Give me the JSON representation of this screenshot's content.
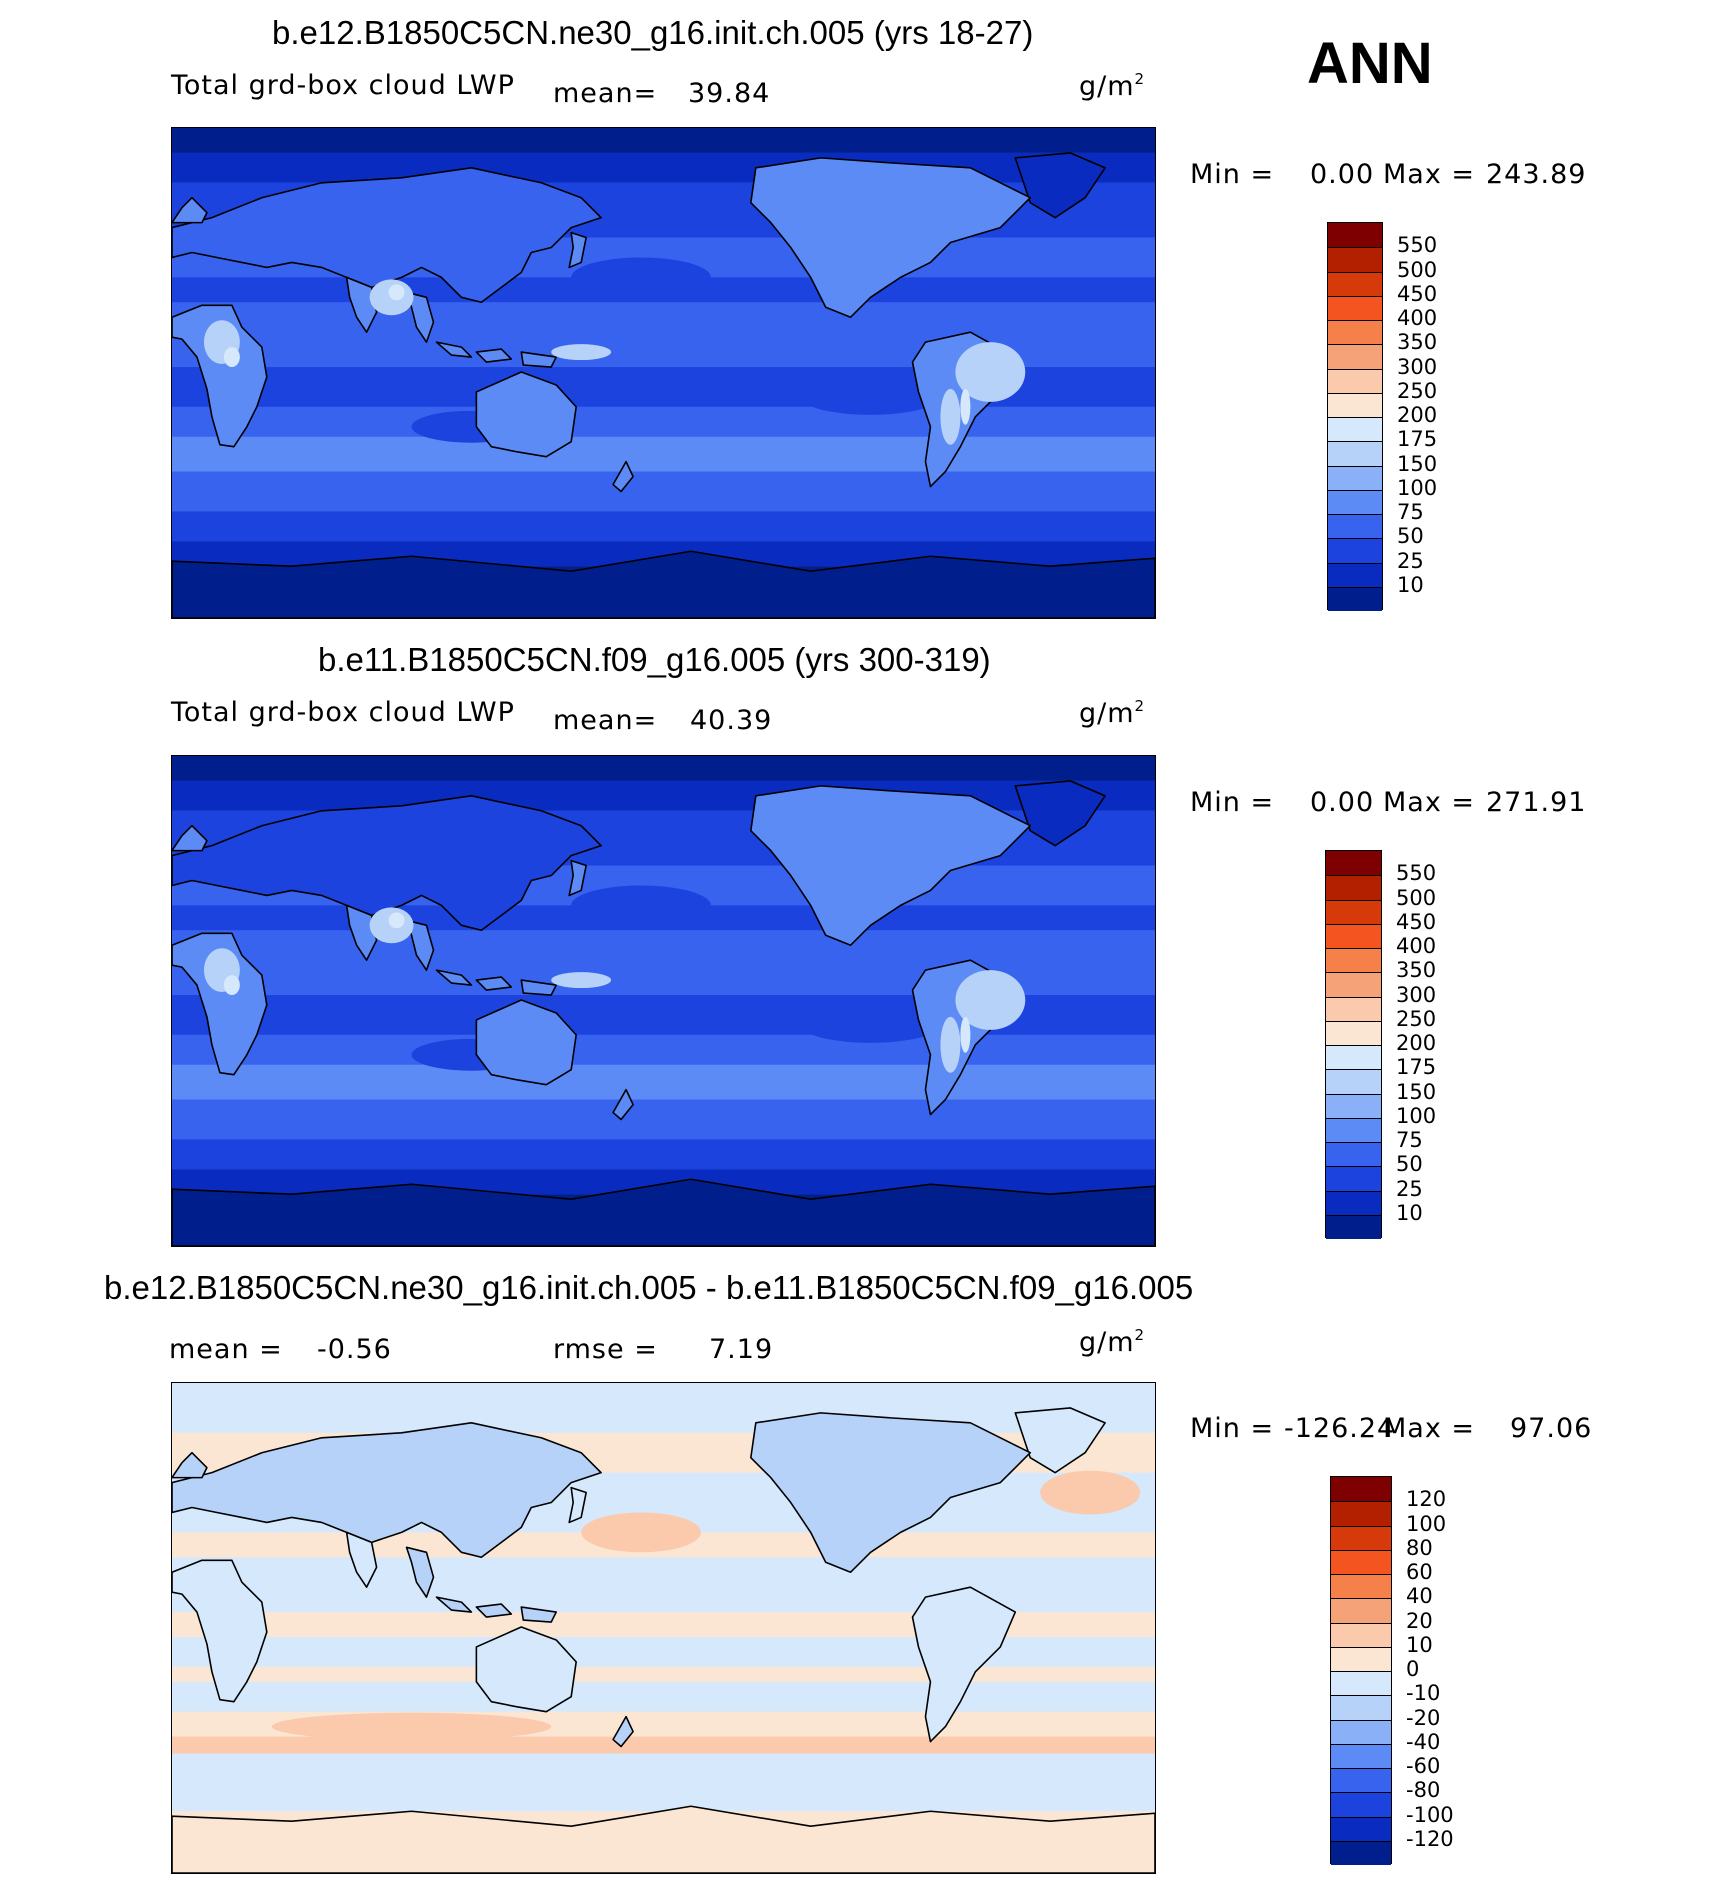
{
  "season": "ANN",
  "units_base": "g/m",
  "units_exp": "2",
  "variable": "Total grd-box cloud LWP",
  "panels": [
    {
      "id": "top",
      "case": "b.e12.B1850C5CN.ne30_g16.init.ch.005 (yrs 18-27)",
      "mean_label": "mean=",
      "mean_value": "39.84",
      "min_label": "Min =",
      "min_value": "0.00",
      "max_label": "Max =",
      "max_value": "243.89"
    },
    {
      "id": "middle",
      "case": "b.e11.B1850C5CN.f09_g16.005 (yrs 300-319)",
      "mean_label": "mean=",
      "mean_value": "40.39",
      "min_label": "Min =",
      "min_value": "0.00",
      "max_label": "Max =",
      "max_value": "271.91"
    },
    {
      "id": "diff",
      "case": "b.e12.B1850C5CN.ne30_g16.init.ch.005 - b.e11.B1850C5CN.f09_g16.005",
      "mean_label": "mean =",
      "mean_value": "-0.56",
      "rmse_label": "rmse =",
      "rmse_value": "7.19",
      "min_label": "Min =",
      "min_value": "-126.24",
      "max_label": "Max =",
      "max_value": "97.06"
    }
  ],
  "colorbar_abs": {
    "labels": [
      "550",
      "500",
      "450",
      "400",
      "350",
      "300",
      "250",
      "200",
      "175",
      "150",
      "100",
      "75",
      "50",
      "25",
      "10"
    ],
    "colors": [
      "#7f0000",
      "#b22000",
      "#d63a0a",
      "#f45520",
      "#f5804a",
      "#f6a278",
      "#fbc9ab",
      "#fbe6d4",
      "#d6e8fb",
      "#b7d2f8",
      "#8ab0f7",
      "#5d8bf6",
      "#3863ef",
      "#1d43de",
      "#0a2bbf",
      "#001f8c"
    ]
  },
  "colorbar_diff": {
    "labels": [
      "120",
      "100",
      "80",
      "60",
      "40",
      "20",
      "10",
      "0",
      "-10",
      "-20",
      "-40",
      "-60",
      "-80",
      "-100",
      "-120"
    ],
    "colors": [
      "#7f0000",
      "#b22000",
      "#d63a0a",
      "#f45520",
      "#f5804a",
      "#f6a278",
      "#fbc9ab",
      "#fbe6d4",
      "#d6e8fb",
      "#b7d2f8",
      "#8ab0f7",
      "#5d8bf6",
      "#3863ef",
      "#1d43de",
      "#0a2bbf",
      "#001f8c"
    ]
  },
  "map_palette": {
    "deep": "#001f8c",
    "c10": "#0a2bbf",
    "c25": "#1d43de",
    "c50": "#3863ef",
    "c75": "#5d8bf6",
    "c100": "#8ab0f7",
    "c150": "#b7d2f8",
    "c175": "#d6e8fb",
    "diff_pos": "#fbe6d4",
    "diff_neg": "#d6e8fb",
    "diff_pos2": "#fbc9ab",
    "diff_neg2": "#b7d2f8"
  }
}
